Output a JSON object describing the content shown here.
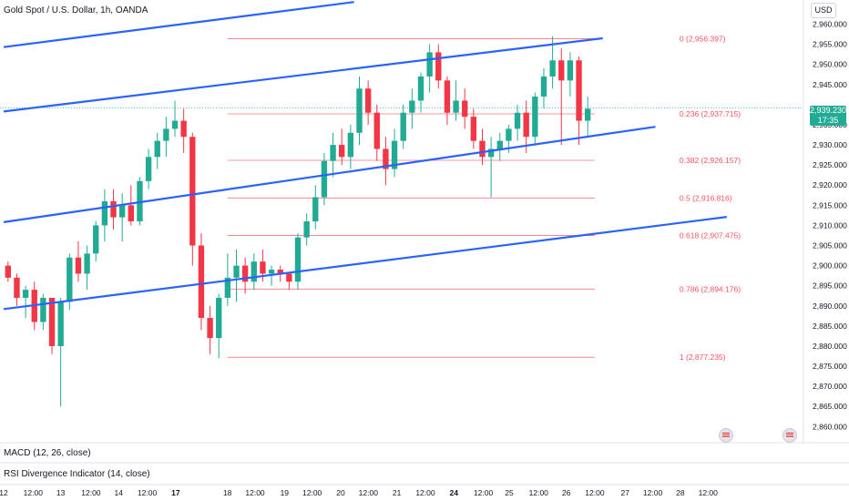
{
  "header": {
    "symbol_title": "Gold Spot / U.S. Dollar, 1h, OANDA",
    "currency": "USD"
  },
  "price_badge": {
    "price": "2,939.230",
    "countdown": "17:35"
  },
  "indicators": [
    {
      "label": "MACD (12, 26, close)"
    },
    {
      "label": "RSI Divergence Indicator (14, close)"
    }
  ],
  "colors": {
    "up": "#22ab94",
    "down": "#f23645",
    "channel": "#2962ff",
    "fib": "#f7525f",
    "current_price": "#22ab94"
  },
  "chart_data": {
    "type": "candlestick",
    "y_axis": {
      "range": [
        2856,
        2966
      ],
      "ticks": [
        2960,
        2955,
        2950,
        2945,
        2940,
        2935,
        2930,
        2925,
        2920,
        2915,
        2910,
        2905,
        2900,
        2895,
        2890,
        2885,
        2880,
        2875,
        2870,
        2865,
        2860
      ]
    },
    "x_axis": {
      "range": [
        0,
        66
      ],
      "ticks": [
        {
          "t": 0,
          "label": "12"
        },
        {
          "t": 3.3,
          "label": "12:00"
        },
        {
          "t": 6.4,
          "label": "13"
        },
        {
          "t": 9.8,
          "label": "12:00"
        },
        {
          "t": 12.9,
          "label": "14"
        },
        {
          "t": 16.1,
          "label": "12:00"
        },
        {
          "t": 19.3,
          "label": "17"
        },
        {
          "t": 25.1,
          "label": "18"
        },
        {
          "t": 28.2,
          "label": "12:00"
        },
        {
          "t": 31.5,
          "label": "19"
        },
        {
          "t": 34.6,
          "label": "12:00"
        },
        {
          "t": 37.8,
          "label": "20"
        },
        {
          "t": 40.9,
          "label": "12:00"
        },
        {
          "t": 44.1,
          "label": "21"
        },
        {
          "t": 47.3,
          "label": "12:00"
        },
        {
          "t": 50.5,
          "label": "24"
        },
        {
          "t": 53.8,
          "label": "12:00"
        },
        {
          "t": 56.7,
          "label": "25"
        },
        {
          "t": 60.0,
          "label": "12:00"
        },
        {
          "t": 63.1,
          "label": "26"
        },
        {
          "t": 66.3,
          "label": "12:00"
        },
        {
          "t": 69.7,
          "label": "27"
        },
        {
          "t": 72.8,
          "label": "12:00"
        },
        {
          "t": 75.9,
          "label": "28"
        },
        {
          "t": 79.0,
          "label": "12:00"
        }
      ]
    },
    "fibonacci": {
      "t_start": 25.1,
      "t_end": 66.3,
      "levels": [
        {
          "label": "0 (2,956.397)",
          "price": 2956.397
        },
        {
          "label": "0.236 (2,937.715)",
          "price": 2937.715
        },
        {
          "label": "0.382 (2,926.157)",
          "price": 2926.157
        },
        {
          "label": "0.5 (2,916.816)",
          "price": 2916.816
        },
        {
          "label": "0.618 (2,907.475)",
          "price": 2907.475
        },
        {
          "label": "0.786 (2,894.176)",
          "price": 2894.176
        },
        {
          "label": "1 (2,877.235)",
          "price": 2877.235
        }
      ]
    },
    "trendlines": [
      {
        "t1": 0,
        "p1": 2954.3,
        "t2": 39.3,
        "p2": 2965.5
      },
      {
        "t1": 0,
        "p1": 2938.3,
        "t2": 67.2,
        "p2": 2956.5
      },
      {
        "t1": 0,
        "p1": 2910.8,
        "t2": 73.1,
        "p2": 2934.5
      },
      {
        "t1": 0,
        "p1": 2889.2,
        "t2": 81.1,
        "p2": 2912.1
      }
    ],
    "current_price": 2939.23,
    "candles": [
      [
        2900,
        2901,
        2896,
        2897
      ],
      [
        2897,
        2898,
        2890,
        2892
      ],
      [
        2892,
        2895,
        2887,
        2894
      ],
      [
        2894,
        2896,
        2884,
        2886
      ],
      [
        2886,
        2893,
        2884,
        2892
      ],
      [
        2892,
        2892,
        2878,
        2880
      ],
      [
        2880,
        2892,
        2865,
        2891
      ],
      [
        2891,
        2903,
        2889,
        2902
      ],
      [
        2902,
        2906,
        2896,
        2898
      ],
      [
        2898,
        2905,
        2894,
        2903
      ],
      [
        2903,
        2911,
        2901,
        2910
      ],
      [
        2910,
        2919,
        2906,
        2916
      ],
      [
        2916,
        2919,
        2909,
        2912
      ],
      [
        2912,
        2918,
        2906,
        2915
      ],
      [
        2915,
        2920,
        2910,
        2911
      ],
      [
        2911,
        2922,
        2910,
        2921
      ],
      [
        2921,
        2929,
        2919,
        2927
      ],
      [
        2927,
        2933,
        2924,
        2931
      ],
      [
        2931,
        2937,
        2927,
        2934
      ],
      [
        2934,
        2941,
        2932,
        2936
      ],
      [
        2936,
        2939,
        2928,
        2932
      ],
      [
        2932,
        2933,
        2900,
        2905
      ],
      [
        2905,
        2908,
        2884,
        2887
      ],
      [
        2887,
        2890,
        2878,
        2882
      ],
      [
        2882,
        2893,
        2877,
        2892
      ],
      [
        2892,
        2903,
        2890,
        2897
      ],
      [
        2897,
        2904,
        2891,
        2900
      ],
      [
        2900,
        2902,
        2893,
        2896
      ],
      [
        2896,
        2903,
        2894,
        2901
      ],
      [
        2901,
        2904,
        2896,
        2898
      ],
      [
        2898,
        2900,
        2895,
        2899
      ],
      [
        2899,
        2900,
        2896,
        2898
      ],
      [
        2898,
        2898,
        2894,
        2896
      ],
      [
        2896,
        2908,
        2894,
        2907
      ],
      [
        2907,
        2913,
        2905,
        2911
      ],
      [
        2911,
        2920,
        2909,
        2917
      ],
      [
        2917,
        2928,
        2915,
        2926
      ],
      [
        2926,
        2933,
        2922,
        2930
      ],
      [
        2930,
        2934,
        2925,
        2927
      ],
      [
        2927,
        2935,
        2924,
        2933
      ],
      [
        2933,
        2947,
        2930,
        2944
      ],
      [
        2944,
        2946,
        2935,
        2938
      ],
      [
        2938,
        2940,
        2926,
        2929
      ],
      [
        2929,
        2932,
        2920,
        2924
      ],
      [
        2924,
        2934,
        2922,
        2931
      ],
      [
        2931,
        2940,
        2929,
        2938
      ],
      [
        2938,
        2944,
        2934,
        2941
      ],
      [
        2941,
        2948,
        2938,
        2947
      ],
      [
        2947,
        2955,
        2943,
        2953
      ],
      [
        2953,
        2955,
        2944,
        2946
      ],
      [
        2946,
        2947,
        2935,
        2938
      ],
      [
        2938,
        2946,
        2936,
        2941
      ],
      [
        2941,
        2944,
        2934,
        2937
      ],
      [
        2937,
        2939,
        2929,
        2931
      ],
      [
        2931,
        2934,
        2925,
        2927
      ],
      [
        2927,
        2932,
        2917,
        2929
      ],
      [
        2929,
        2933,
        2926,
        2931
      ],
      [
        2931,
        2935,
        2928,
        2934
      ],
      [
        2934,
        2940,
        2931,
        2938
      ],
      [
        2938,
        2941,
        2928,
        2932
      ],
      [
        2932,
        2943,
        2930,
        2942
      ],
      [
        2942,
        2949,
        2939,
        2947
      ],
      [
        2947,
        2957,
        2944,
        2951
      ],
      [
        2951,
        2954,
        2930,
        2946
      ],
      [
        2946,
        2953,
        2942,
        2951
      ],
      [
        2951,
        2952,
        2930,
        2936
      ],
      [
        2936,
        2942,
        2932,
        2939
      ]
    ]
  }
}
